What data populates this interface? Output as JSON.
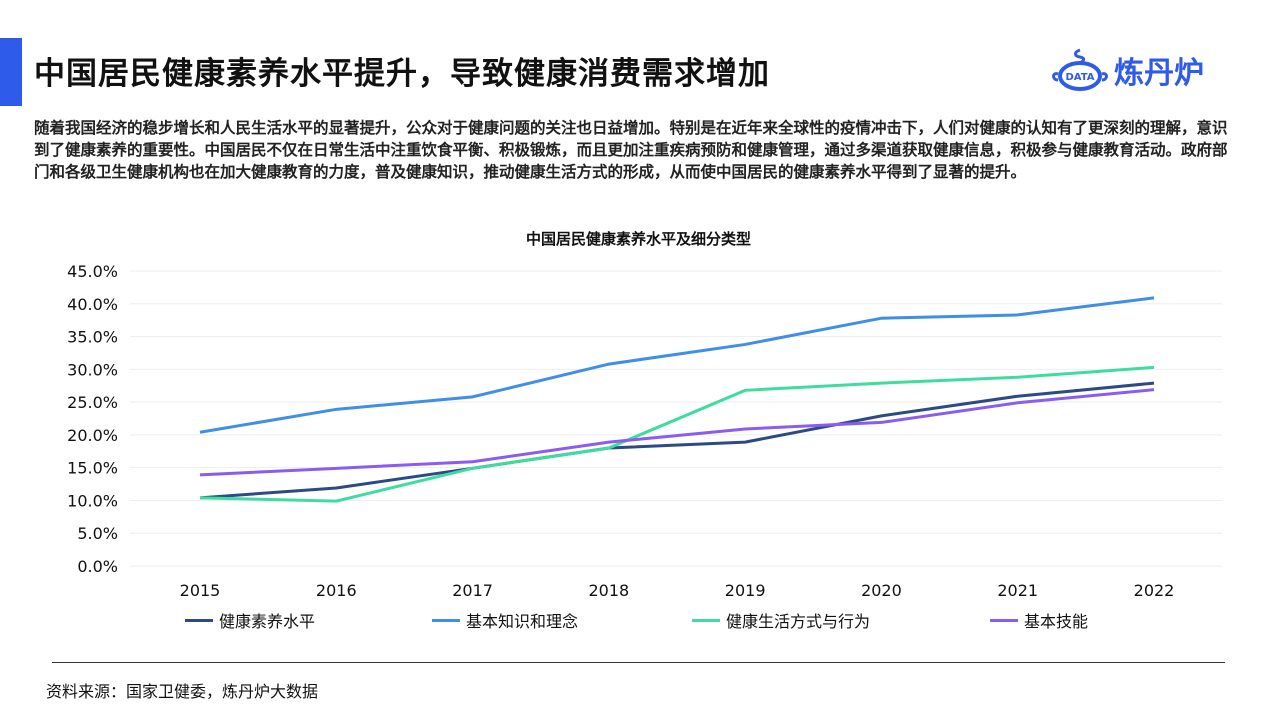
{
  "header": {
    "title": "中国居民健康素养水平提升，导致健康消费需求增加",
    "logo_text": "炼丹炉",
    "logo_badge": "DATA",
    "accent": "#2f5bea"
  },
  "paragraph": "随着我国经济的稳步增长和人民生活水平的显著提升，公众对于健康问题的关注也日益增加。特别是在近年来全球性的疫情冲击下，人们对健康的认知有了更深刻的理解，意识到了健康素养的重要性。中国居民不仅在日常生活中注重饮食平衡、积极锻炼，而且更加注重疾病预防和健康管理，通过多渠道获取健康信息，积极参与健康教育活动。政府部门和各级卫生健康机构也在加大健康教育的力度，普及健康知识，推动健康生活方式的形成，从而使中国居民的健康素养水平得到了显著的提升。",
  "chart_data": {
    "type": "line",
    "title": "中国居民健康素养水平及细分类型",
    "categories": [
      "2015",
      "2016",
      "2017",
      "2018",
      "2019",
      "2020",
      "2021",
      "2022"
    ],
    "yticks": [
      "0.0%",
      "5.0%",
      "10.0%",
      "15.0%",
      "20.0%",
      "25.0%",
      "30.0%",
      "35.0%",
      "40.0%",
      "45.0%"
    ],
    "ylim": [
      0,
      45
    ],
    "grid": true,
    "legend_position": "bottom",
    "series": [
      {
        "name": "健康素养水平",
        "color": "#2b4a86",
        "values": [
          10.4,
          11.9,
          14.9,
          18.0,
          18.9,
          22.9,
          25.9,
          27.9
        ]
      },
      {
        "name": "基本知识和理念",
        "color": "#3f8ee8",
        "values": [
          20.4,
          23.9,
          25.8,
          30.8,
          33.8,
          37.8,
          38.3,
          40.9
        ]
      },
      {
        "name": "健康生活方式与行为",
        "color": "#3fdca0",
        "values": [
          10.4,
          9.9,
          14.9,
          18.0,
          26.8,
          27.9,
          28.8,
          30.3
        ]
      },
      {
        "name": "基本技能",
        "color": "#8a5cf0",
        "values": [
          13.9,
          14.9,
          15.9,
          18.9,
          20.9,
          21.9,
          24.9,
          26.9
        ]
      }
    ]
  },
  "footer": {
    "source": "资料来源：国家卫健委，炼丹炉大数据"
  }
}
